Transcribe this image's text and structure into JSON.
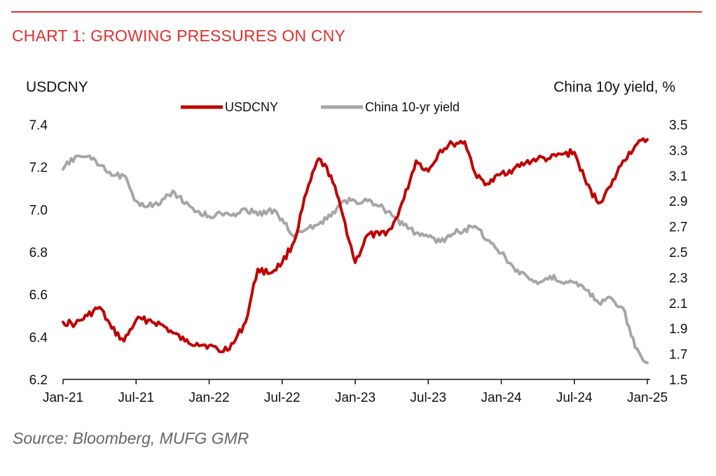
{
  "header": {
    "title": "CHART 1: GROWING PRESSURES ON CNY"
  },
  "footer": {
    "source": "Source: Bloomberg, MUFG GMR"
  },
  "colors": {
    "accent": "#e0302b",
    "usdcny": "#c00000",
    "yield": "#a6a6a6",
    "source_text": "#666666"
  },
  "chart_data": {
    "type": "line",
    "title": "CHART 1: GROWING PRESSURES ON CNY",
    "left_axis_label": "USDCNY",
    "right_axis_label": "China 10y yield, %",
    "x_ticks": [
      "Jan-21",
      "Jul-21",
      "Jan-22",
      "Jul-22",
      "Jan-23",
      "Jul-23",
      "Jan-24",
      "Jul-24",
      "Jan-25"
    ],
    "left_ticks": [
      "6.2",
      "6.4",
      "6.6",
      "6.8",
      "7.0",
      "7.2",
      "7.4"
    ],
    "right_ticks": [
      "1.5",
      "1.7",
      "1.9",
      "2.1",
      "2.3",
      "2.5",
      "2.7",
      "2.9",
      "3.1",
      "3.3",
      "3.5"
    ],
    "ylim_left": [
      6.2,
      7.4
    ],
    "ylim_right": [
      1.5,
      3.5
    ],
    "xlim": [
      "2021-01",
      "2025-01"
    ],
    "legend_position": "top-center",
    "grid": false,
    "series": [
      {
        "name": "USDCNY",
        "axis": "left",
        "x": [
          "2021-01",
          "2021-02",
          "2021-03",
          "2021-04",
          "2021-05",
          "2021-06",
          "2021-07",
          "2021-08",
          "2021-09",
          "2021-10",
          "2021-11",
          "2021-12",
          "2022-01",
          "2022-02",
          "2022-03",
          "2022-04",
          "2022-05",
          "2022-06",
          "2022-07",
          "2022-08",
          "2022-09",
          "2022-10",
          "2022-11",
          "2022-12",
          "2023-01",
          "2023-02",
          "2023-03",
          "2023-04",
          "2023-05",
          "2023-06",
          "2023-07",
          "2023-08",
          "2023-09",
          "2023-10",
          "2023-11",
          "2023-12",
          "2024-01",
          "2024-02",
          "2024-03",
          "2024-04",
          "2024-05",
          "2024-06",
          "2024-07",
          "2024-08",
          "2024-09",
          "2024-10",
          "2024-11",
          "2024-12",
          "2025-01"
        ],
        "values": [
          6.47,
          6.46,
          6.5,
          6.54,
          6.44,
          6.38,
          6.48,
          6.48,
          6.46,
          6.42,
          6.38,
          6.37,
          6.36,
          6.33,
          6.37,
          6.47,
          6.72,
          6.7,
          6.75,
          6.85,
          7.08,
          7.24,
          7.16,
          6.97,
          6.75,
          6.88,
          6.88,
          6.91,
          7.05,
          7.23,
          7.18,
          7.28,
          7.31,
          7.32,
          7.15,
          7.12,
          7.17,
          7.19,
          7.22,
          7.24,
          7.24,
          7.26,
          7.27,
          7.12,
          7.03,
          7.11,
          7.23,
          7.3,
          7.33
        ]
      },
      {
        "name": "China 10-yr yield",
        "axis": "right",
        "x": [
          "2021-01",
          "2021-02",
          "2021-03",
          "2021-04",
          "2021-05",
          "2021-06",
          "2021-07",
          "2021-08",
          "2021-09",
          "2021-10",
          "2021-11",
          "2021-12",
          "2022-01",
          "2022-02",
          "2022-03",
          "2022-04",
          "2022-05",
          "2022-06",
          "2022-07",
          "2022-08",
          "2022-09",
          "2022-10",
          "2022-11",
          "2022-12",
          "2023-01",
          "2023-02",
          "2023-03",
          "2023-04",
          "2023-05",
          "2023-06",
          "2023-07",
          "2023-08",
          "2023-09",
          "2023-10",
          "2023-11",
          "2023-12",
          "2024-01",
          "2024-02",
          "2024-03",
          "2024-04",
          "2024-05",
          "2024-06",
          "2024-07",
          "2024-08",
          "2024-09",
          "2024-10",
          "2024-11",
          "2024-12",
          "2025-01"
        ],
        "values": [
          3.15,
          3.25,
          3.25,
          3.18,
          3.1,
          3.1,
          2.9,
          2.86,
          2.88,
          2.98,
          2.88,
          2.82,
          2.78,
          2.8,
          2.8,
          2.84,
          2.79,
          2.84,
          2.76,
          2.62,
          2.68,
          2.72,
          2.78,
          2.9,
          2.9,
          2.9,
          2.86,
          2.79,
          2.71,
          2.65,
          2.62,
          2.58,
          2.64,
          2.68,
          2.69,
          2.59,
          2.49,
          2.38,
          2.32,
          2.25,
          2.31,
          2.26,
          2.26,
          2.2,
          2.1,
          2.14,
          2.06,
          1.75,
          1.63
        ]
      }
    ]
  }
}
